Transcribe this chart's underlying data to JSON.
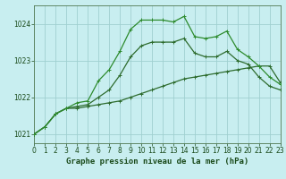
{
  "title": "Graphe pression niveau de la mer (hPa)",
  "background_color": "#c8eef0",
  "grid_color": "#a0d0d0",
  "xlim": [
    0,
    23
  ],
  "ylim": [
    1020.75,
    1024.5
  ],
  "yticks": [
    1021,
    1022,
    1023,
    1024
  ],
  "xticks": [
    0,
    1,
    2,
    3,
    4,
    5,
    6,
    7,
    8,
    9,
    10,
    11,
    12,
    13,
    14,
    15,
    16,
    17,
    18,
    19,
    20,
    21,
    22,
    23
  ],
  "line_bottom_color": "#2d6b2d",
  "line_mid_color": "#2d6b2d",
  "line_top_color": "#2d8b2d",
  "line_bottom_x": [
    0,
    1,
    2,
    3,
    4,
    5,
    6,
    7,
    8,
    9,
    10,
    11,
    12,
    13,
    14,
    15,
    16,
    17,
    18,
    19,
    20,
    21,
    22,
    23
  ],
  "line_bottom_y": [
    1021.0,
    1021.2,
    1021.55,
    1021.7,
    1021.7,
    1021.75,
    1021.8,
    1021.85,
    1021.9,
    1022.0,
    1022.1,
    1022.2,
    1022.3,
    1022.4,
    1022.5,
    1022.55,
    1022.6,
    1022.65,
    1022.7,
    1022.75,
    1022.8,
    1022.85,
    1022.85,
    1022.4
  ],
  "line_mid_x": [
    0,
    1,
    2,
    3,
    4,
    5,
    6,
    7,
    8,
    9,
    10,
    11,
    12,
    13,
    14,
    15,
    16,
    17,
    18,
    19,
    20,
    21,
    22,
    23
  ],
  "line_mid_y": [
    1021.0,
    1021.2,
    1021.55,
    1021.7,
    1021.75,
    1021.8,
    1022.0,
    1022.2,
    1022.6,
    1023.1,
    1023.4,
    1023.5,
    1023.5,
    1023.5,
    1023.6,
    1023.2,
    1023.1,
    1023.1,
    1023.25,
    1023.0,
    1022.9,
    1022.55,
    1022.3,
    1022.2
  ],
  "line_top_x": [
    0,
    1,
    2,
    3,
    4,
    5,
    6,
    7,
    8,
    9,
    10,
    11,
    12,
    13,
    14,
    15,
    16,
    17,
    18,
    19,
    20,
    21,
    22,
    23
  ],
  "line_top_y": [
    1021.0,
    1021.2,
    1021.55,
    1021.7,
    1021.85,
    1021.9,
    1022.45,
    1022.75,
    1023.25,
    1023.85,
    1024.1,
    1024.1,
    1024.1,
    1024.05,
    1024.2,
    1023.65,
    1023.6,
    1023.65,
    1023.8,
    1023.3,
    1023.1,
    1022.85,
    1022.55,
    1022.35
  ],
  "title_fontsize": 6.5,
  "tick_fontsize": 5.5
}
